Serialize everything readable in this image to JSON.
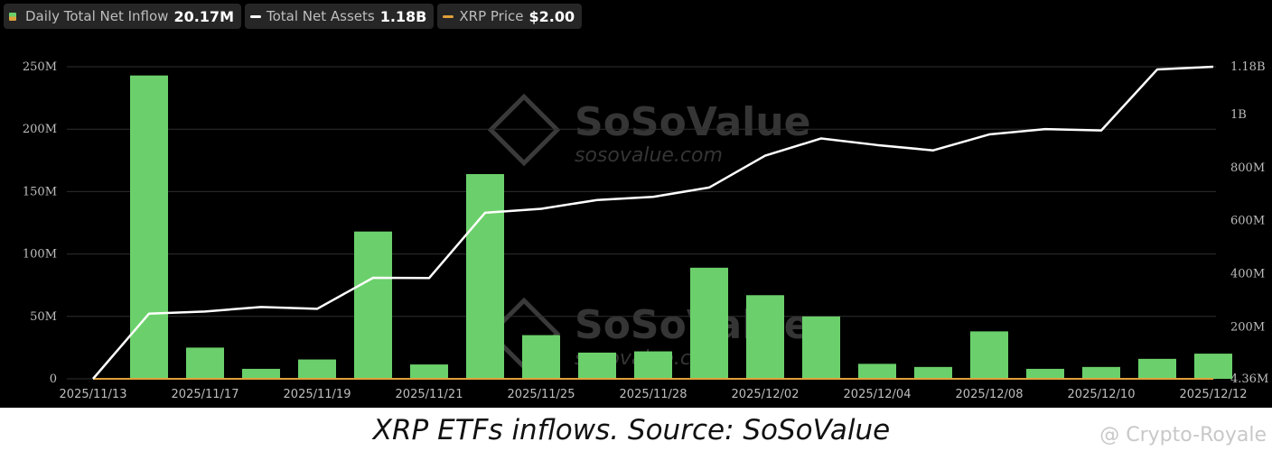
{
  "legend": [
    {
      "label": "Daily Total Net Inflow",
      "value": "20.17M",
      "swatch": "bar"
    },
    {
      "label": "Total Net Assets",
      "value": "1.18B",
      "swatch": "line",
      "color": "#ffffff"
    },
    {
      "label": "XRP Price",
      "value": "$2.00",
      "swatch": "line",
      "color": "#e0a03a"
    }
  ],
  "watermark": {
    "brand": "SoSoValue",
    "url": "sosovalue.com"
  },
  "caption": "XRP ETFs inflows. Source: SoSoValue",
  "credit": "@ Crypto-Royale",
  "colors": {
    "bar": "#6bd06b",
    "line": "#ffffff",
    "price": "#e0a03a",
    "grid": "#2e2e2e",
    "tick": "#bdbdbd"
  },
  "chart_data": {
    "type": "bar",
    "title": "",
    "x_tick_labels": [
      "2025/11/13",
      "2025/11/17",
      "2025/11/19",
      "2025/11/21",
      "2025/11/25",
      "2025/11/28",
      "2025/12/02",
      "2025/12/04",
      "2025/12/08",
      "2025/12/10",
      "2025/12/12"
    ],
    "left_axis": {
      "ticks": [
        "0",
        "50M",
        "100M",
        "150M",
        "200M",
        "250M"
      ],
      "range": [
        0,
        250
      ]
    },
    "right_axis": {
      "ticks": [
        "4.36M",
        "200M",
        "400M",
        "600M",
        "800M",
        "1B",
        "1.18B"
      ],
      "range": [
        4.36,
        1180
      ]
    },
    "grid": true,
    "legend_position": "top-left",
    "series": [
      {
        "name": "Daily Total Net Inflow",
        "type": "bar",
        "axis": "left",
        "unit": "M",
        "values": [
          0,
          243,
          25,
          8,
          15.5,
          118,
          11.5,
          164,
          35,
          21,
          22,
          89,
          67,
          50,
          12,
          9.5,
          38,
          8,
          9.5,
          16,
          20.17
        ]
      },
      {
        "name": "Total Net Assets",
        "type": "line",
        "axis": "right",
        "unit": "M",
        "values": [
          4.36,
          250,
          258,
          275,
          268,
          385,
          384,
          630,
          645,
          678,
          690,
          725,
          845,
          910,
          885,
          865,
          925,
          945,
          940,
          1170,
          1180
        ]
      },
      {
        "name": "XRP Price",
        "type": "line",
        "axis": "flat",
        "values": [
          2,
          2,
          2,
          2,
          2,
          2,
          2,
          2,
          2,
          2,
          2,
          2,
          2,
          2,
          2,
          2,
          2,
          2,
          2,
          2,
          2
        ]
      }
    ]
  }
}
